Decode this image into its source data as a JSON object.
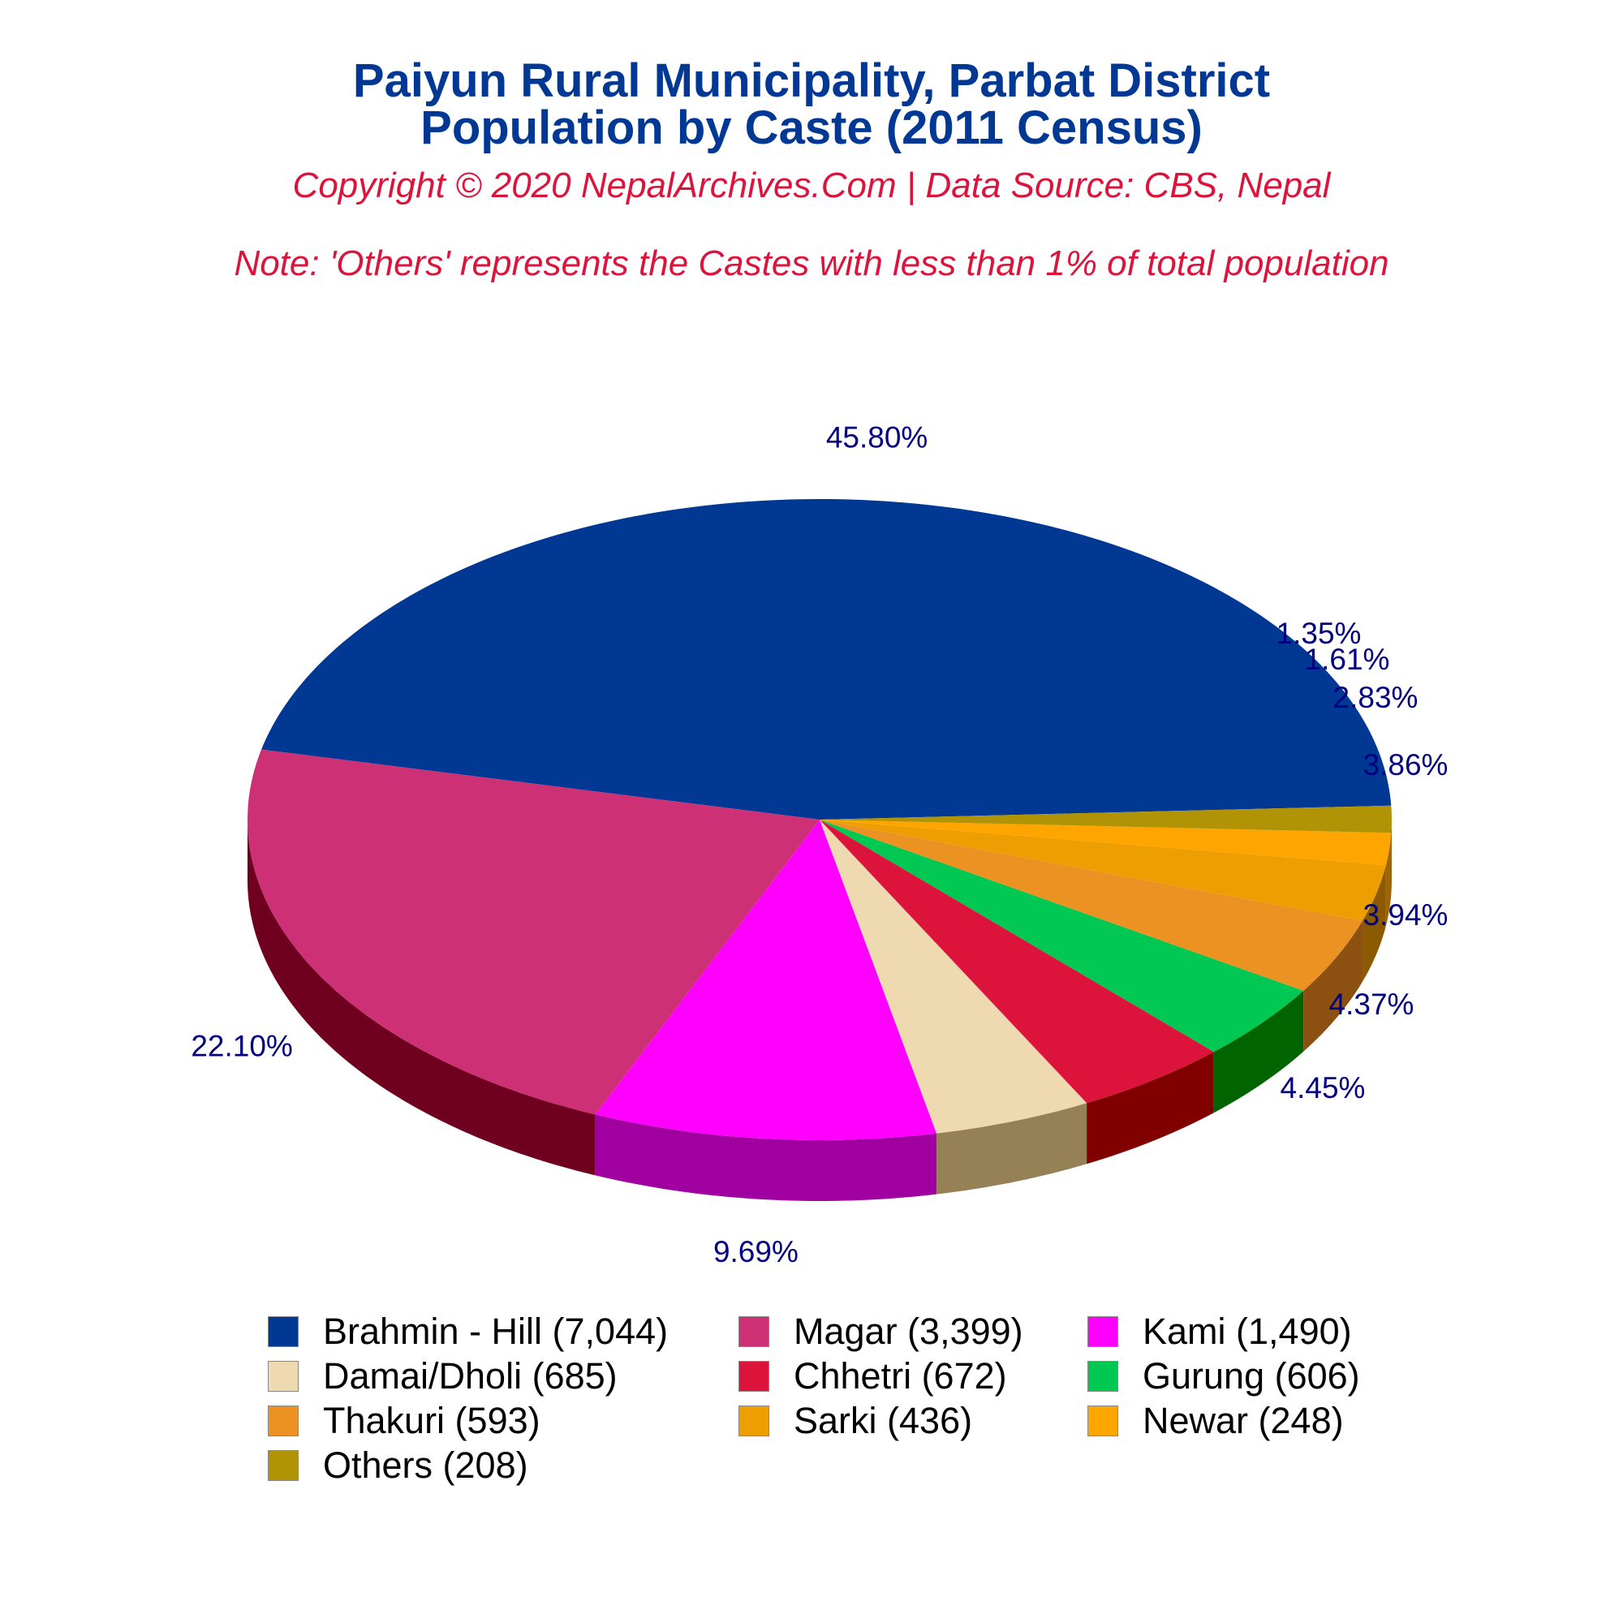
{
  "title_line1": "Paiyun Rural Municipality, Parbat District",
  "title_line2": "Population by Caste (2011 Census)",
  "copyright": "Copyright © 2020 NepalArchives.Com | Data Source: CBS, Nepal",
  "note": "Note: 'Others' represents the Castes with less than 1% of total population",
  "chart_data": {
    "type": "pie",
    "style": "3d",
    "categories": [
      "Brahmin - Hill",
      "Magar",
      "Kami",
      "Damai/Dholi",
      "Chhetri",
      "Gurung",
      "Thakuri",
      "Sarki",
      "Newar",
      "Others"
    ],
    "values": [
      7044,
      3399,
      1490,
      685,
      672,
      606,
      593,
      436,
      248,
      208
    ],
    "percent_labels": [
      "45.80%",
      "22.10%",
      "9.69%",
      "4.45%",
      "4.37%",
      "3.94%",
      "3.86%",
      "2.83%",
      "1.61%",
      "1.35%"
    ],
    "legend_labels": [
      "Brahmin - Hill (7,044)",
      "Magar (3,399)",
      "Kami (1,490)",
      "Damai/Dholi (685)",
      "Chhetri (672)",
      "Gurung (606)",
      "Thakuri (593)",
      "Sarki (436)",
      "Newar (248)",
      "Others (208)"
    ],
    "colors": [
      "#003893",
      "#cd3074",
      "#ff00ff",
      "#eed9b0",
      "#dc143c",
      "#00c853",
      "#eb9223",
      "#ed9e00",
      "#ffa500",
      "#b09405"
    ],
    "side_colors": [
      "#000040",
      "#700020",
      "#a000a0",
      "#968055",
      "#800000",
      "#006400",
      "#8c5010",
      "#8c5a00",
      "#a06400",
      "#6e5c00"
    ],
    "label_color": "#000080",
    "legend_placement": "bottom"
  }
}
